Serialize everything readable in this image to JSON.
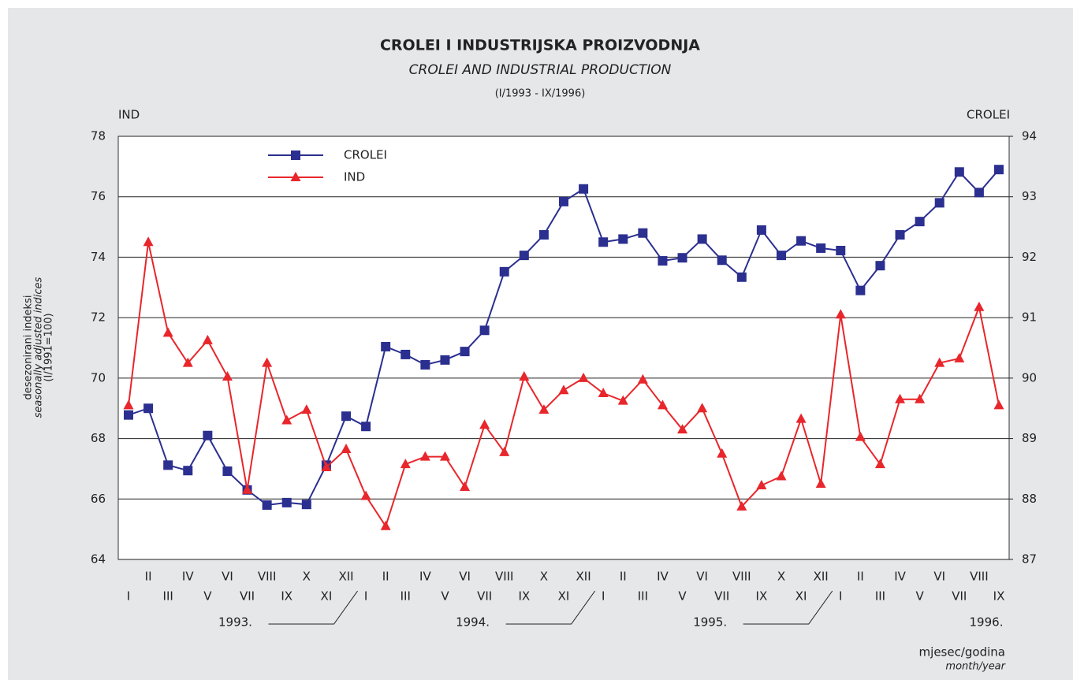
{
  "chart_data": {
    "type": "line",
    "title": "CROLEI I INDUSTRIJSKA PROIZVODNJA",
    "subtitle": "CROLEI AND INDUSTRIAL PRODUCTION",
    "period": "(I/1993 - IX/1996)",
    "y_axis_title": "IND",
    "y2_axis_title": "CROLEI",
    "y_label_lines": [
      "desezonirani indeksi",
      "seasonally adjusted indices",
      "(I/1991=100)"
    ],
    "x_label_lines": [
      "mjesec/godina",
      "month/year"
    ],
    "years": [
      "1993.",
      "1994.",
      "1995.",
      "1996."
    ],
    "categories": [
      "I",
      "II",
      "III",
      "IV",
      "V",
      "VI",
      "VII",
      "VIII",
      "IX",
      "X",
      "XI",
      "XII",
      "I",
      "II",
      "III",
      "IV",
      "V",
      "VI",
      "VII",
      "VIII",
      "IX",
      "X",
      "XI",
      "XII",
      "I",
      "II",
      "III",
      "IV",
      "V",
      "VI",
      "VII",
      "VIII",
      "IX",
      "X",
      "XI",
      "XII",
      "I",
      "II",
      "III",
      "IV",
      "V",
      "VI",
      "VII",
      "VIII",
      "IX"
    ],
    "ylim": [
      64,
      78
    ],
    "yticks": [
      64,
      66,
      68,
      70,
      72,
      74,
      76,
      78
    ],
    "y2lim": [
      87,
      94
    ],
    "y2ticks": [
      87,
      88,
      89,
      90,
      91,
      92,
      93,
      94
    ],
    "grid": true,
    "legend": "upper left",
    "series": [
      {
        "name": "CROLEI",
        "color": "#2b2f8f",
        "axis": "y2",
        "marker": "square",
        "values": [
          89.39,
          89.5,
          88.56,
          88.47,
          89.05,
          88.46,
          88.15,
          87.9,
          87.94,
          87.91,
          88.56,
          89.37,
          89.2,
          90.52,
          90.39,
          90.22,
          90.3,
          90.44,
          90.79,
          91.76,
          92.03,
          92.37,
          92.92,
          93.13,
          92.25,
          92.3,
          92.4,
          91.94,
          91.99,
          92.3,
          91.95,
          91.67,
          92.45,
          92.03,
          92.27,
          92.15,
          92.11,
          91.45,
          91.86,
          92.37,
          92.59,
          92.9,
          93.41,
          93.07,
          93.45
        ]
      },
      {
        "name": "IND",
        "color": "#e8262b",
        "axis": "y",
        "marker": "triangle",
        "values": [
          69.1,
          74.5,
          71.5,
          70.5,
          71.25,
          70.05,
          66.3,
          70.5,
          68.6,
          68.95,
          67.05,
          67.65,
          66.1,
          65.1,
          67.15,
          67.4,
          67.4,
          66.4,
          68.45,
          67.55,
          70.05,
          68.95,
          69.6,
          70.0,
          69.5,
          69.25,
          69.95,
          69.1,
          68.3,
          69.0,
          67.5,
          65.75,
          66.45,
          66.75,
          68.65,
          66.5,
          72.1,
          68.05,
          67.15,
          69.3,
          69.3,
          70.5,
          70.65,
          72.35,
          69.1
        ]
      }
    ]
  }
}
